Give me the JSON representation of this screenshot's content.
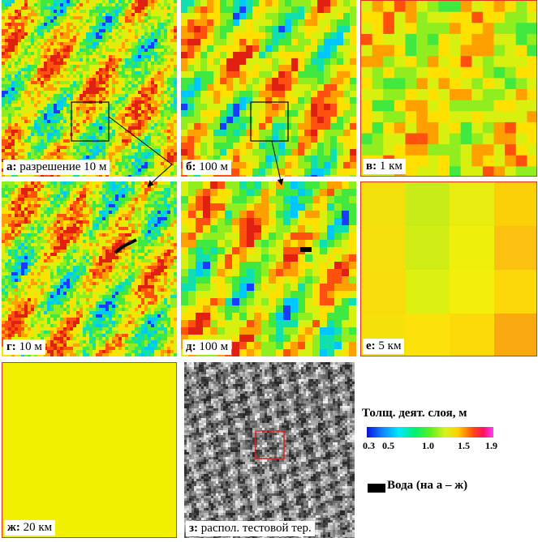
{
  "panels": {
    "a": {
      "letter": "а:",
      "text": " разрешение 10 м"
    },
    "b": {
      "letter": "б:",
      "text": " 100 м"
    },
    "v": {
      "letter": "в:",
      "text": " 1 км"
    },
    "g": {
      "letter": "г:",
      "text": " 10 м"
    },
    "d": {
      "letter": "д:",
      "text": " 100 м"
    },
    "e": {
      "letter": "е:",
      "text": " 5 км"
    },
    "zh": {
      "letter": "ж:",
      "text": " 20 км"
    },
    "z": {
      "letter": "з:",
      "text": " распол. тестовой тер."
    }
  },
  "legend": {
    "title": "Толщ. деят. слоя, м",
    "ticks": [
      "0.3",
      "0.5",
      "1.0",
      "1.5",
      "1.9"
    ],
    "water_label": "Вода (на а – ж)"
  },
  "colors": {
    "frame": "#e0301e",
    "water": "#000000",
    "uniform_20km": "#f0f000"
  }
}
